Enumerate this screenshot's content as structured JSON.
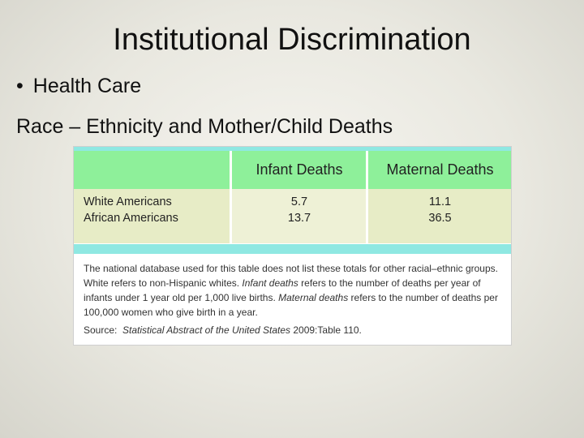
{
  "slide": {
    "title": "Institutional Discrimination",
    "bullet": "Health Care",
    "subtitle": "Race – Ethnicity and Mother/Child Deaths"
  },
  "table": {
    "headers": [
      "",
      "Infant Deaths",
      "Maternal Deaths"
    ],
    "rows": [
      {
        "label": "White Americans",
        "infant": "5.7",
        "maternal": "11.1"
      },
      {
        "label": "African Americans",
        "infant": "13.7",
        "maternal": "36.5"
      }
    ],
    "note": {
      "part1": "The national database used for this table does not list these totals for other racial–ethnic groups. White refers to non-Hispanic whites. ",
      "term1": "Infant deaths",
      "part2": " refers to the number of deaths per year of infants under 1 year old per 1,000 live births. ",
      "term2": "Maternal deaths",
      "part3": " refers to the number of deaths per 100,000 women who give birth in a year."
    },
    "source": {
      "label": "Source:",
      "work": "Statistical Abstract of the United States",
      "ref": " 2009:Table 110."
    }
  }
}
